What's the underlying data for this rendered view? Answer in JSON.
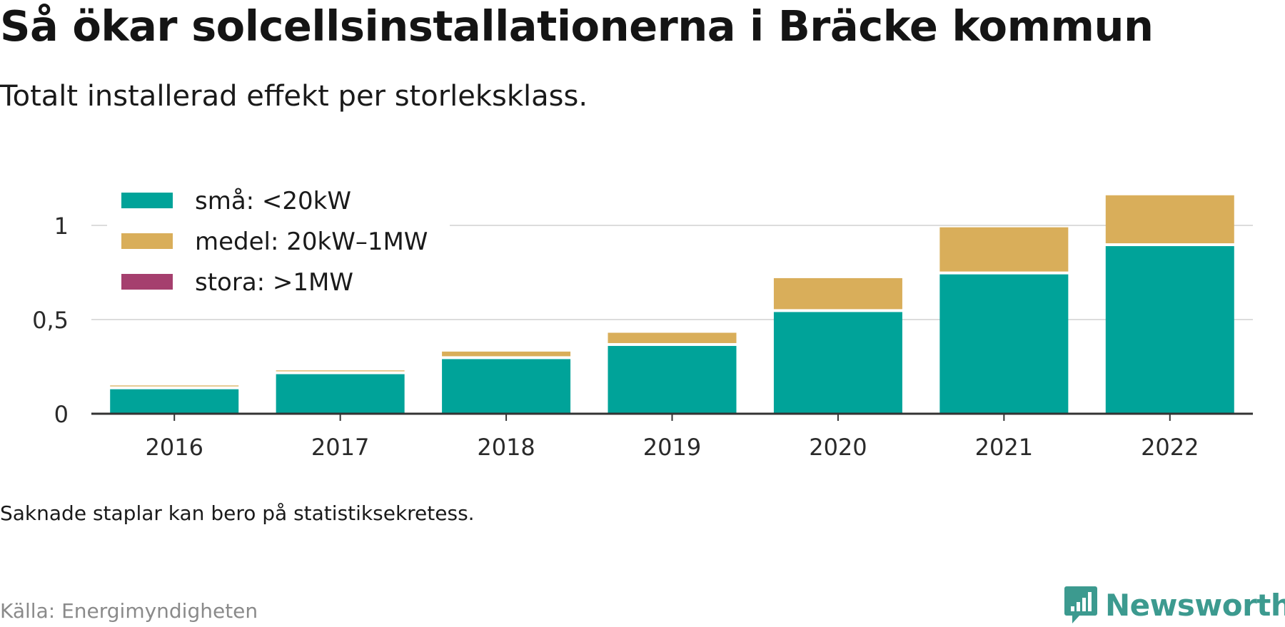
{
  "title": "Så ökar solcellsinstallationerna i Bräcke kommun",
  "subtitle": "Totalt installerad effekt per storleksklass.",
  "note": "Saknade staplar kan bero på statistiksekretess.",
  "source": "Källa: Energimyndigheten",
  "brand": "Newsworthy",
  "chart_data": {
    "type": "bar",
    "stacked": true,
    "categories": [
      "2016",
      "2017",
      "2018",
      "2019",
      "2020",
      "2021",
      "2022"
    ],
    "series": [
      {
        "name": "små: <20kW",
        "color": "#00a399",
        "values": [
          0.13,
          0.21,
          0.29,
          0.36,
          0.54,
          0.74,
          0.89
        ]
      },
      {
        "name": "medel: 20kW–1MW",
        "color": "#d9ae5a",
        "values": [
          0.02,
          0.02,
          0.04,
          0.07,
          0.18,
          0.25,
          0.27
        ]
      },
      {
        "name": "stora: >1MW",
        "color": "#a53f6e",
        "values": [
          0,
          0,
          0,
          0,
          0,
          0,
          0
        ]
      }
    ],
    "ylim": [
      0,
      1.2
    ],
    "yticks": [
      0,
      0.5,
      1
    ],
    "ytick_labels": [
      "0",
      "0,5",
      "1"
    ],
    "xlabel": "",
    "ylabel": "",
    "grid": true,
    "legend": "top-left"
  }
}
